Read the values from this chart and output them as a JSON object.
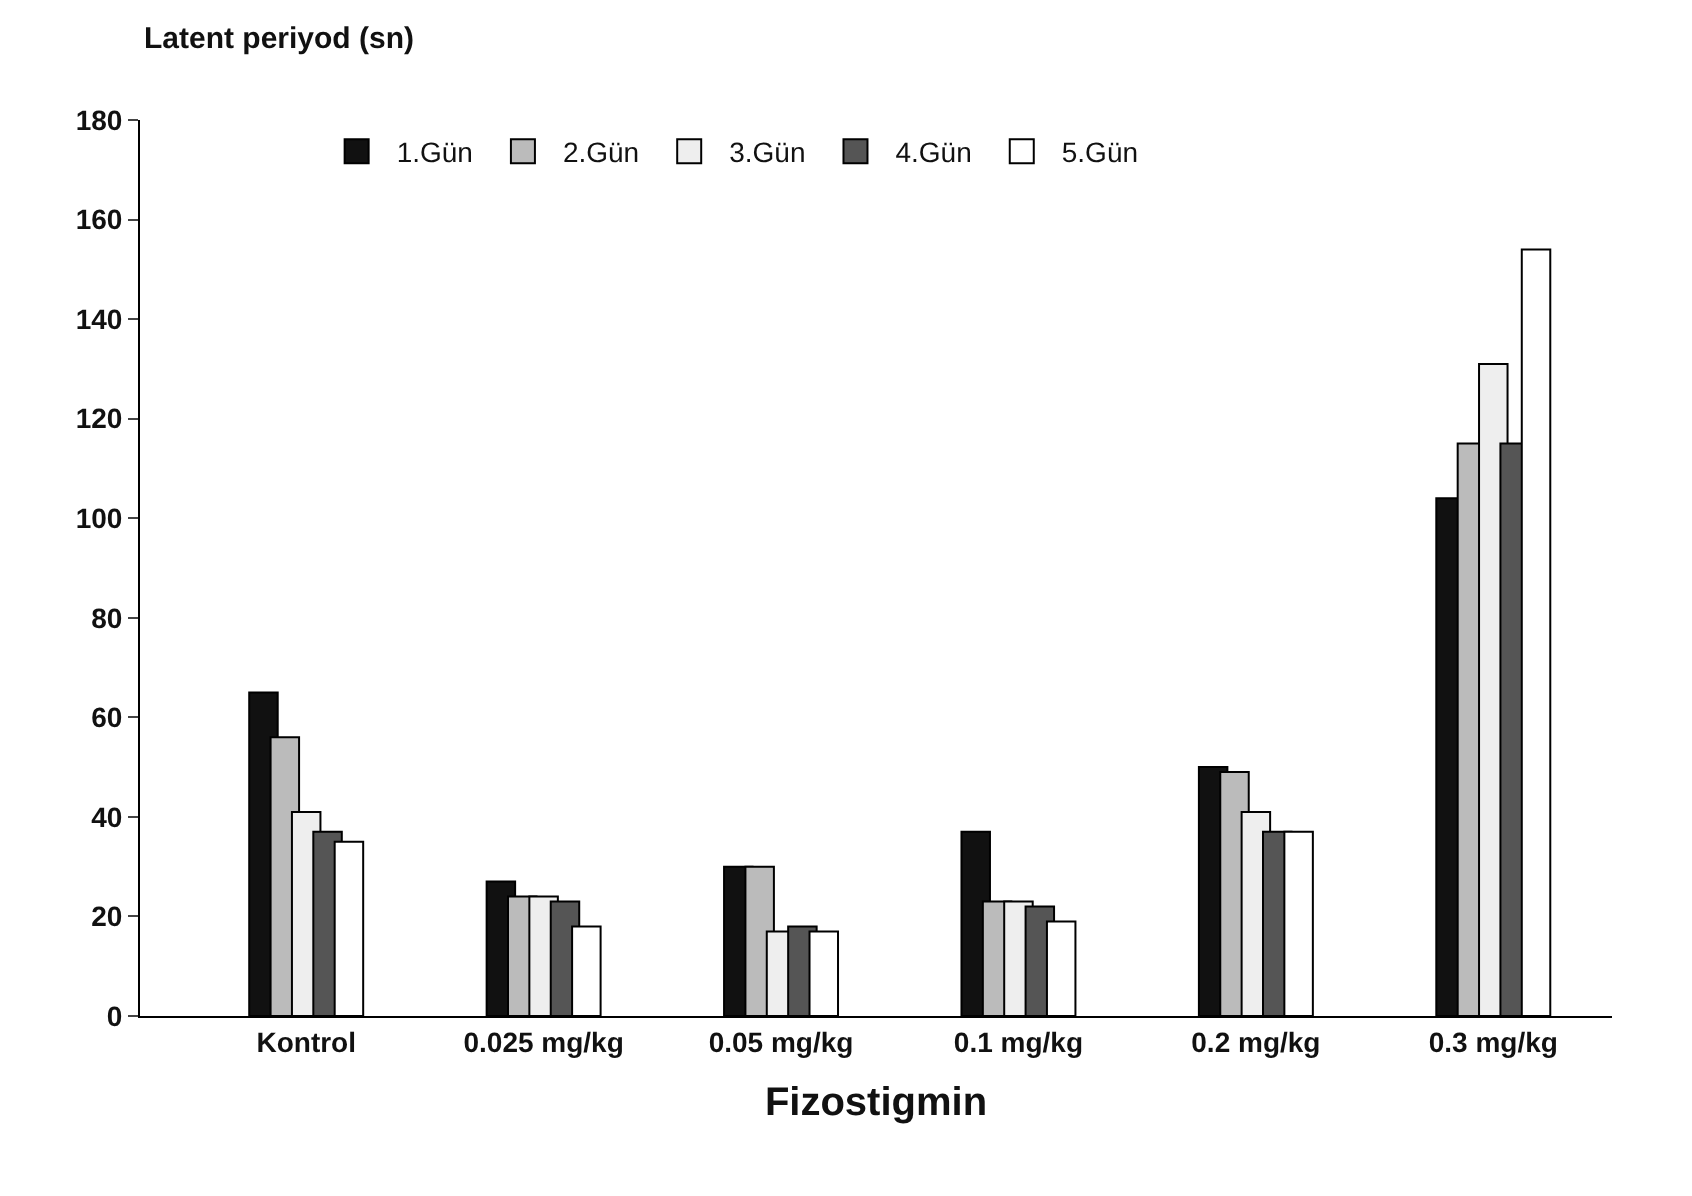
{
  "chart_data": {
    "type": "bar",
    "ylabel": "Latent periyod (sn)",
    "xlabel": "Fizostigmin",
    "categories": [
      "Kontrol",
      "0.025 mg/kg",
      "0.05 mg/kg",
      "0.1 mg/kg",
      "0.2 mg/kg",
      "0.3 mg/kg"
    ],
    "series": [
      {
        "name": "1.Gün",
        "color": "#111111",
        "values": [
          65,
          27,
          30,
          37,
          50,
          104
        ]
      },
      {
        "name": "2.Gün",
        "color": "#bbbbbb",
        "values": [
          56,
          24,
          30,
          23,
          49,
          115
        ]
      },
      {
        "name": "3.Gün",
        "color": "#eeeeee",
        "values": [
          41,
          24,
          17,
          23,
          41,
          131
        ]
      },
      {
        "name": "4.Gün",
        "color": "#555555",
        "values": [
          37,
          23,
          18,
          22,
          37,
          115
        ]
      },
      {
        "name": "5.Gün",
        "color": "#ffffff",
        "values": [
          35,
          18,
          17,
          19,
          37,
          154
        ]
      }
    ],
    "ylim": [
      0,
      180
    ],
    "yticks": [
      0,
      20,
      40,
      60,
      80,
      100,
      120,
      140,
      160,
      180
    ],
    "legend": "top"
  }
}
